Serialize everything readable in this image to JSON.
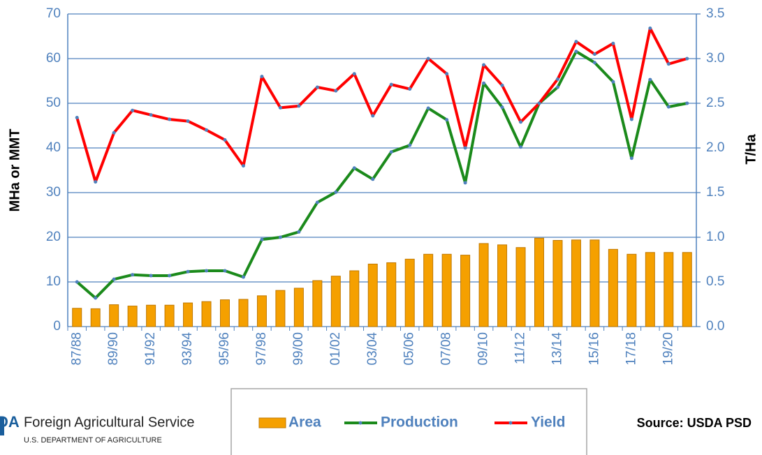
{
  "chart_data": {
    "type": "bar",
    "categories": [
      "87/88",
      null,
      "89/90",
      null,
      "91/92",
      null,
      "93/94",
      null,
      "95/96",
      null,
      "97/98",
      null,
      "99/00",
      null,
      "01/02",
      null,
      "03/04",
      null,
      "05/06",
      null,
      "07/08",
      null,
      "09/10",
      null,
      "11/12",
      null,
      "13/14",
      null,
      "15/16",
      null,
      "17/18",
      null,
      "19/20",
      null
    ],
    "series": [
      {
        "name": "Area",
        "type": "bar",
        "color": "#f5a000",
        "values": [
          4.1,
          4.0,
          4.9,
          4.6,
          4.8,
          4.8,
          5.3,
          5.6,
          6.0,
          6.1,
          6.9,
          8.1,
          8.6,
          10.3,
          11.3,
          12.5,
          14.0,
          14.3,
          15.1,
          16.2,
          16.2,
          16.0,
          18.6,
          18.3,
          17.7,
          19.8,
          19.3,
          19.4,
          19.4,
          17.3,
          16.2,
          16.6,
          16.6,
          16.6
        ]
      },
      {
        "name": "Production",
        "type": "line",
        "color": "#1b8a1b",
        "values": [
          10.0,
          6.4,
          10.6,
          11.6,
          11.4,
          11.4,
          12.3,
          12.5,
          12.5,
          11.1,
          19.5,
          20.0,
          21.2,
          27.8,
          30.1,
          35.5,
          33.0,
          39.1,
          40.6,
          48.9,
          46.3,
          32.2,
          54.5,
          49.1,
          40.2,
          50.0,
          53.6,
          61.6,
          59.1,
          54.8,
          37.7,
          55.3,
          49.2,
          50.0
        ]
      },
      {
        "name": "Yield",
        "type": "line",
        "axis": "y2",
        "color": "#ff0000",
        "values": [
          2.34,
          1.62,
          2.17,
          2.42,
          2.37,
          2.32,
          2.3,
          2.2,
          2.09,
          1.8,
          2.8,
          2.45,
          2.47,
          2.68,
          2.64,
          2.83,
          2.36,
          2.71,
          2.66,
          3.0,
          2.83,
          2.0,
          2.93,
          2.7,
          2.29,
          2.5,
          2.77,
          3.19,
          3.05,
          3.17,
          2.32,
          3.34,
          2.94,
          3.0
        ]
      }
    ],
    "ylabel": "MHa or MMT",
    "y2label": "T/Ha",
    "ylim": [
      0,
      70
    ],
    "yticks": [
      0,
      10,
      20,
      30,
      40,
      50,
      60,
      70
    ],
    "y2lim": [
      0,
      3.5
    ],
    "y2ticks": [
      {
        "value": 0,
        "label": "0.0"
      },
      0.5,
      {
        "value": 1,
        "label": "1.0"
      },
      1.5,
      {
        "value": 2,
        "label": "2.0"
      },
      2.5,
      {
        "value": 3,
        "label": "3.0"
      },
      3.5
    ],
    "grid": true,
    "legend": "bottom",
    "source": "Source: USDA PSD",
    "logo_mark": "DA",
    "logo_title": "Foreign Agricultural Service",
    "logo_subtitle": "U.S. DEPARTMENT OF AGRICULTURE"
  }
}
